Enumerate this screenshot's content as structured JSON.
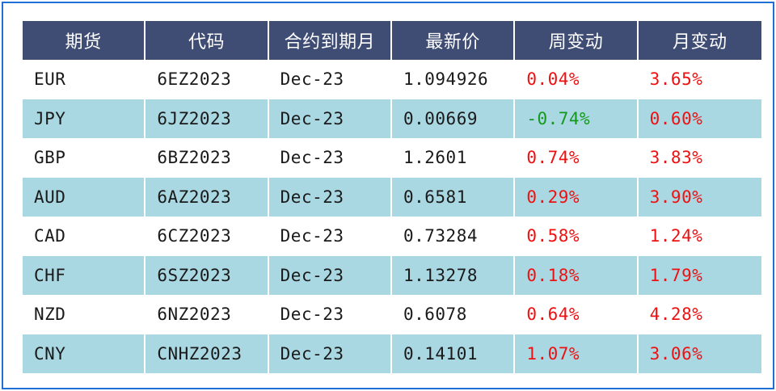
{
  "colors": {
    "header_bg": "#3f4c74",
    "stripe_bg": "#a9d8e3",
    "positive": "#ee1111",
    "negative": "#139a1b",
    "frame_border": "#1f6fd6"
  },
  "table": {
    "headers": [
      "期货",
      "代码",
      "合约到期月",
      "最新价",
      "周变动",
      "月变动"
    ],
    "rows": [
      {
        "future": "EUR",
        "code": "6EZ2023",
        "expiry": "Dec-23",
        "last": "1.094926",
        "week": "0.04%",
        "month": "3.65%"
      },
      {
        "future": "JPY",
        "code": "6JZ2023",
        "expiry": "Dec-23",
        "last": "0.00669",
        "week": "-0.74%",
        "month": "0.60%"
      },
      {
        "future": "GBP",
        "code": "6BZ2023",
        "expiry": "Dec-23",
        "last": "1.2601",
        "week": "0.74%",
        "month": "3.83%"
      },
      {
        "future": "AUD",
        "code": "6AZ2023",
        "expiry": "Dec-23",
        "last": "0.6581",
        "week": "0.29%",
        "month": "3.90%"
      },
      {
        "future": "CAD",
        "code": "6CZ2023",
        "expiry": "Dec-23",
        "last": "0.73284",
        "week": "0.58%",
        "month": "1.24%"
      },
      {
        "future": "CHF",
        "code": "6SZ2023",
        "expiry": "Dec-23",
        "last": "1.13278",
        "week": "0.18%",
        "month": "1.79%"
      },
      {
        "future": "NZD",
        "code": "6NZ2023",
        "expiry": "Dec-23",
        "last": "0.6078",
        "week": "0.64%",
        "month": "4.28%"
      },
      {
        "future": "CNY",
        "code": "CNHZ2023",
        "expiry": "Dec-23",
        "last": "0.14101",
        "week": "1.07%",
        "month": "3.06%"
      }
    ]
  }
}
